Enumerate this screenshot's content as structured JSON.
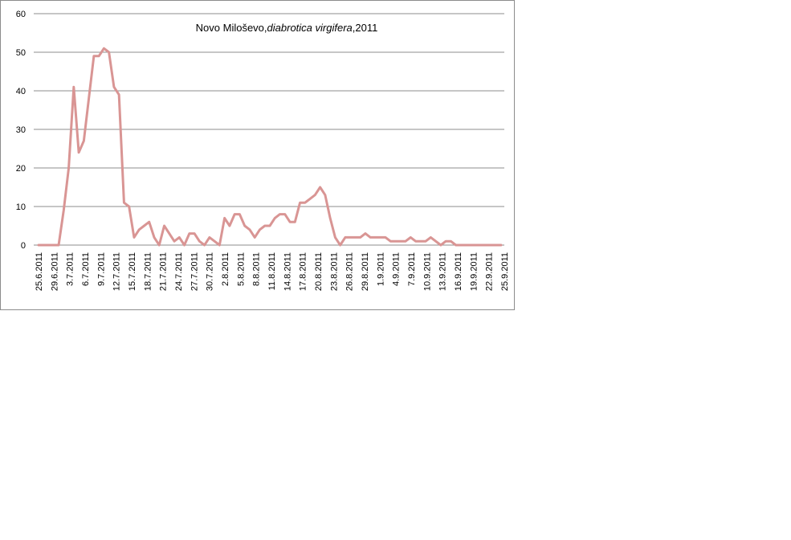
{
  "chart_data": {
    "type": "line",
    "title_plain": "Novo Miloševo,",
    "title_italic": "diabrotica virgifera",
    "title_end": ",2011",
    "xlabel": "",
    "ylabel": "",
    "ylim": [
      0,
      60
    ],
    "yticks": [
      0,
      10,
      20,
      30,
      40,
      50,
      60
    ],
    "grid": true,
    "legend": "none",
    "line_color": "#d99594",
    "grid_color": "#8c8c8c",
    "x_tick_labels": [
      "25.6.2011",
      "29.6.2011",
      "3.7.2011",
      "6.7.2011",
      "9.7.2011",
      "12.7.2011",
      "15.7.2011",
      "18.7.2011",
      "21.7.2011",
      "24.7.2011",
      "27.7.2011",
      "30.7.2011",
      "2.8.2011",
      "5.8.2011",
      "8.8.2011",
      "11.8.2011",
      "14.8.2011",
      "17.8.2011",
      "20.8.2011",
      "23.8.2011",
      "26.8.2011",
      "29.8.2011",
      "1.9.2011",
      "4.9.2011",
      "7.9.2011",
      "10.9.2011",
      "13.9.2011",
      "16.9.2011",
      "19.9.2011",
      "22.9.2011",
      "25.9.2011"
    ],
    "x_start": "25.6.2011",
    "x_end": "25.9.2011",
    "values": [
      0,
      0,
      0,
      0,
      0,
      9,
      20,
      41,
      24,
      27,
      38,
      49,
      49,
      51,
      50,
      41,
      39,
      11,
      10,
      2,
      4,
      5,
      6,
      2,
      0,
      5,
      3,
      1,
      2,
      0,
      3,
      3,
      1,
      0,
      2,
      1,
      0,
      7,
      5,
      8,
      8,
      5,
      4,
      2,
      4,
      5,
      5,
      7,
      8,
      8,
      6,
      6,
      11,
      11,
      12,
      13,
      15,
      13,
      7,
      2,
      0,
      2,
      2,
      2,
      2,
      3,
      2,
      2,
      2,
      2,
      1,
      1,
      1,
      1,
      2,
      1,
      1,
      1,
      2,
      1,
      0,
      1,
      1,
      0,
      0,
      0,
      0,
      0,
      0,
      0,
      0,
      0,
      0
    ]
  }
}
